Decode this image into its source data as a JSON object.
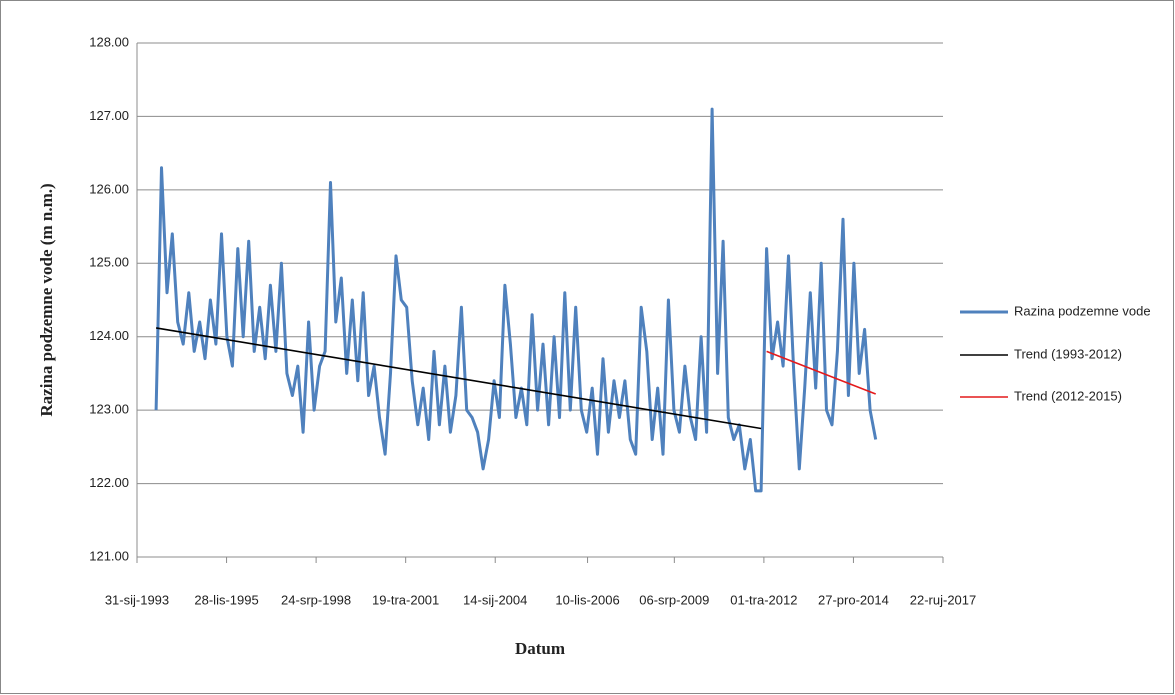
{
  "chart_data": {
    "type": "line",
    "x_title": "Datum",
    "y_title": "Razina podzemne vode (m n.m.)",
    "xlim": [
      "1993-01-31",
      "2017-09-22"
    ],
    "xticks": [
      {
        "value": "1993-01-31",
        "label": "31-sij-1993"
      },
      {
        "value": "1995-10-28",
        "label": "28-lis-1995"
      },
      {
        "value": "1998-07-24",
        "label": "24-srp-1998"
      },
      {
        "value": "2001-04-19",
        "label": "19-tra-2001"
      },
      {
        "value": "2004-01-14",
        "label": "14-sij-2004"
      },
      {
        "value": "2006-11-10",
        "label": "10-lis-2006"
      },
      {
        "value": "2009-07-06",
        "label": "06-srp-2009"
      },
      {
        "value": "2012-04-01",
        "label": "01-tra-2012"
      },
      {
        "value": "2014-12-27",
        "label": "27-pro-2014"
      },
      {
        "value": "2017-09-22",
        "label": "22-ruj-2017"
      }
    ],
    "ylim": [
      121,
      128
    ],
    "yticks": [
      {
        "value": 121,
        "label": "121.00"
      },
      {
        "value": 122,
        "label": "122.00"
      },
      {
        "value": 123,
        "label": "123.00"
      },
      {
        "value": 124,
        "label": "124.00"
      },
      {
        "value": 125,
        "label": "125.00"
      },
      {
        "value": 126,
        "label": "126.00"
      },
      {
        "value": 127,
        "label": "127.00"
      },
      {
        "value": 128,
        "label": "128.00"
      }
    ],
    "grid": true,
    "legend": "right",
    "series": [
      {
        "name": "Razina podzemne vode",
        "color": "#4f81bd",
        "x": [
          "1993-09-01",
          "1993-11-01",
          "1994-01-01",
          "1994-03-01",
          "1994-05-01",
          "1994-07-01",
          "1994-09-01",
          "1994-11-01",
          "1995-01-01",
          "1995-03-01",
          "1995-05-01",
          "1995-07-01",
          "1995-09-01",
          "1995-11-01",
          "1996-01-01",
          "1996-03-01",
          "1996-05-01",
          "1996-07-01",
          "1996-09-01",
          "1996-11-01",
          "1997-01-01",
          "1997-03-01",
          "1997-05-01",
          "1997-07-01",
          "1997-09-01",
          "1997-11-01",
          "1998-01-01",
          "1998-03-01",
          "1998-05-01",
          "1998-07-01",
          "1998-09-01",
          "1998-11-01",
          "1999-01-01",
          "1999-03-01",
          "1999-05-01",
          "1999-07-01",
          "1999-09-01",
          "1999-11-01",
          "2000-01-01",
          "2000-03-01",
          "2000-05-01",
          "2000-07-01",
          "2000-09-01",
          "2000-11-01",
          "2001-01-01",
          "2001-03-01",
          "2001-05-01",
          "2001-07-01",
          "2001-09-01",
          "2001-11-01",
          "2002-01-01",
          "2002-03-01",
          "2002-05-01",
          "2002-07-01",
          "2002-09-01",
          "2002-11-01",
          "2003-01-01",
          "2003-03-01",
          "2003-05-01",
          "2003-07-01",
          "2003-09-01",
          "2003-11-01",
          "2004-01-01",
          "2004-03-01",
          "2004-05-01",
          "2004-07-01",
          "2004-09-01",
          "2004-11-01",
          "2005-01-01",
          "2005-03-01",
          "2005-05-01",
          "2005-07-01",
          "2005-09-01",
          "2005-11-01",
          "2006-01-01",
          "2006-03-01",
          "2006-05-01",
          "2006-07-01",
          "2006-09-01",
          "2006-11-01",
          "2007-01-01",
          "2007-03-01",
          "2007-05-01",
          "2007-07-01",
          "2007-09-01",
          "2007-11-01",
          "2008-01-01",
          "2008-03-01",
          "2008-05-01",
          "2008-07-01",
          "2008-09-01",
          "2008-11-01",
          "2009-01-01",
          "2009-03-01",
          "2009-05-01",
          "2009-07-01",
          "2009-09-01",
          "2009-11-01",
          "2010-01-01",
          "2010-03-01",
          "2010-05-01",
          "2010-07-01",
          "2010-09-01",
          "2010-11-01",
          "2011-01-01",
          "2011-03-01",
          "2011-05-01",
          "2011-07-01",
          "2011-09-01",
          "2011-11-01",
          "2012-01-01",
          "2012-03-01",
          "2012-05-01",
          "2012-07-01",
          "2012-09-01",
          "2012-11-01",
          "2013-01-01",
          "2013-03-01",
          "2013-05-01",
          "2013-07-01",
          "2013-09-01",
          "2013-11-01",
          "2014-01-01",
          "2014-03-01",
          "2014-05-01",
          "2014-07-01",
          "2014-09-01",
          "2014-11-01",
          "2015-01-01",
          "2015-03-01",
          "2015-05-01",
          "2015-07-01",
          "2015-09-01"
        ],
        "values": [
          123.0,
          126.3,
          124.6,
          125.4,
          124.2,
          123.9,
          124.6,
          123.8,
          124.2,
          123.7,
          124.5,
          123.9,
          125.4,
          124.0,
          123.6,
          125.2,
          124.0,
          125.3,
          123.8,
          124.4,
          123.7,
          124.7,
          123.8,
          125.0,
          123.5,
          123.2,
          123.6,
          122.7,
          124.2,
          123.0,
          123.6,
          123.8,
          126.1,
          124.2,
          124.8,
          123.5,
          124.5,
          123.4,
          124.6,
          123.2,
          123.6,
          122.9,
          122.4,
          123.5,
          125.1,
          124.5,
          124.4,
          123.4,
          122.8,
          123.3,
          122.6,
          123.8,
          122.8,
          123.6,
          122.7,
          123.2,
          124.4,
          123.0,
          122.9,
          122.7,
          122.2,
          122.6,
          123.4,
          122.9,
          124.7,
          123.9,
          122.9,
          123.3,
          122.8,
          124.3,
          123.0,
          123.9,
          122.8,
          124.0,
          122.9,
          124.6,
          123.0,
          124.4,
          123.0,
          122.7,
          123.3,
          122.4,
          123.7,
          122.7,
          123.4,
          122.9,
          123.4,
          122.6,
          122.4,
          124.4,
          123.8,
          122.6,
          123.3,
          122.4,
          124.5,
          123.0,
          122.7,
          123.6,
          122.9,
          122.6,
          124.0,
          122.7,
          127.1,
          123.5,
          125.3,
          122.9,
          122.6,
          122.8,
          122.2,
          122.6,
          121.9,
          121.9,
          125.2,
          123.7,
          124.2,
          123.6,
          125.1,
          123.5,
          122.2,
          123.3,
          124.6,
          123.3,
          125.0,
          123.0,
          122.8,
          123.8,
          125.6,
          123.2,
          125.0,
          123.5,
          124.1,
          123.0,
          122.6
        ]
      },
      {
        "name": "Trend (1993-2012)",
        "color": "#000000",
        "x": [
          "1993-09-01",
          "2012-03-01"
        ],
        "values": [
          124.12,
          122.75
        ]
      },
      {
        "name": "Trend (2012-2015)",
        "color": "#e41a1c",
        "x": [
          "2012-05-01",
          "2015-09-01"
        ],
        "values": [
          123.8,
          123.22
        ]
      }
    ]
  }
}
